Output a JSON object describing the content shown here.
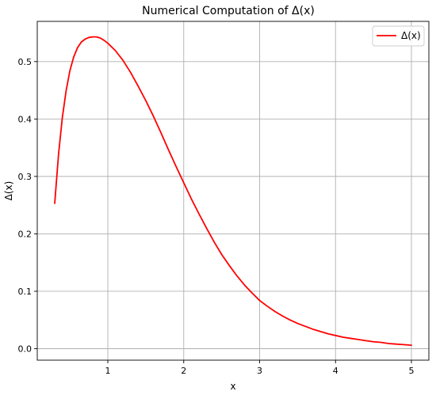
{
  "chart_data": {
    "type": "line",
    "title": "Numerical Computation of Δ(x)",
    "xlabel": "x",
    "ylabel": "Δ(x)",
    "xlim": [
      0.07,
      5.23
    ],
    "ylim": [
      -0.02,
      0.57
    ],
    "xticks": [
      "1",
      "2",
      "3",
      "4",
      "5"
    ],
    "xtick_values": [
      1,
      2,
      3,
      4,
      5
    ],
    "yticks": [
      "0.0",
      "0.1",
      "0.2",
      "0.3",
      "0.4",
      "0.5"
    ],
    "ytick_values": [
      0.0,
      0.1,
      0.2,
      0.3,
      0.4,
      0.5
    ],
    "grid": true,
    "legend_position": "top-right",
    "series": [
      {
        "name": "Δ(x)",
        "color": "#ff0000",
        "x": [
          0.3,
          0.35,
          0.4,
          0.45,
          0.5,
          0.55,
          0.6,
          0.65,
          0.7,
          0.75,
          0.8,
          0.85,
          0.9,
          0.95,
          1.0,
          1.1,
          1.2,
          1.3,
          1.4,
          1.5,
          1.6,
          1.7,
          1.8,
          1.9,
          2.0,
          2.1,
          2.2,
          2.3,
          2.4,
          2.5,
          2.6,
          2.7,
          2.8,
          2.9,
          3.0,
          3.1,
          3.2,
          3.3,
          3.4,
          3.5,
          3.6,
          3.7,
          3.8,
          3.9,
          4.0,
          4.1,
          4.2,
          4.3,
          4.4,
          4.5,
          4.6,
          4.7,
          4.8,
          4.9,
          5.0
        ],
        "y": [
          0.253,
          0.338,
          0.402,
          0.449,
          0.484,
          0.508,
          0.524,
          0.534,
          0.539,
          0.542,
          0.543,
          0.543,
          0.541,
          0.537,
          0.532,
          0.519,
          0.502,
          0.481,
          0.457,
          0.432,
          0.405,
          0.376,
          0.346,
          0.317,
          0.289,
          0.261,
          0.235,
          0.21,
          0.186,
          0.164,
          0.145,
          0.127,
          0.111,
          0.097,
          0.084,
          0.074,
          0.065,
          0.057,
          0.05,
          0.044,
          0.039,
          0.034,
          0.03,
          0.026,
          0.023,
          0.02,
          0.018,
          0.016,
          0.014,
          0.012,
          0.011,
          0.009,
          0.008,
          0.007,
          0.006
        ]
      }
    ]
  }
}
